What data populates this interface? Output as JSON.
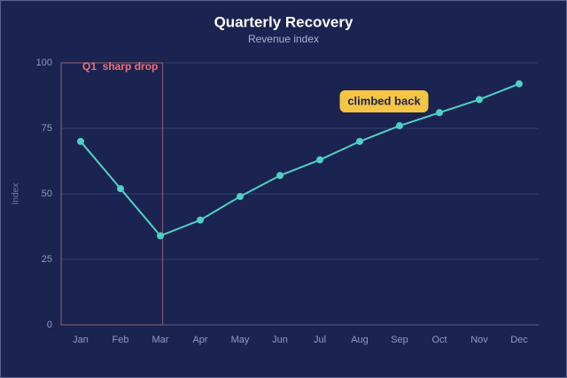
{
  "chart_data": {
    "type": "line",
    "title": "Quarterly Recovery",
    "subtitle": "Revenue index",
    "y_label": "Index",
    "categories": [
      "Jan",
      "Feb",
      "Mar",
      "Apr",
      "May",
      "Jun",
      "Jul",
      "Aug",
      "Sep",
      "Oct",
      "Nov",
      "Dec"
    ],
    "values": [
      70,
      52,
      34,
      40,
      49,
      57,
      63,
      70,
      76,
      81,
      86,
      92
    ],
    "color": "#4fd1c5",
    "ylim": [
      0,
      100
    ],
    "yticks": [
      0,
      25,
      50,
      75,
      100
    ],
    "grid": true,
    "annotations": [
      "Q1  sharp drop",
      "climbed back"
    ]
  }
}
